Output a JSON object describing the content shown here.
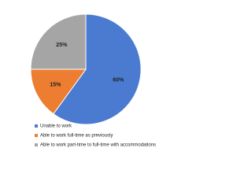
{
  "chart_data": {
    "type": "pie",
    "categories": [
      "Unable to work",
      "Able to work full-time as previously",
      "Able to work part-time to full-time with accommodations"
    ],
    "values": [
      60,
      15,
      25
    ],
    "value_labels": [
      "60%",
      "15%",
      "25%"
    ],
    "colors": [
      "#4a7bd0",
      "#ed7d31",
      "#a5a5a5"
    ]
  }
}
